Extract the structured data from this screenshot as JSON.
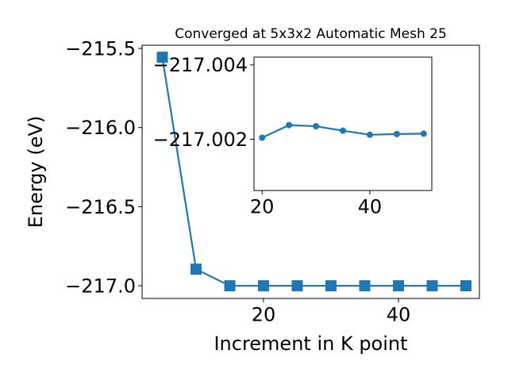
{
  "chart_data": [
    {
      "type": "line",
      "role": "main",
      "title": "Converged at 5x3x2 Automatic Mesh 25",
      "xlabel": "Increment in K point",
      "ylabel": "Energy (eV)",
      "xlim": [
        2,
        52
      ],
      "ylim": [
        -217.08,
        -215.48
      ],
      "xticks": [
        20,
        40
      ],
      "xtick_labels": [
        "20",
        "40"
      ],
      "yticks": [
        -215.5,
        -216.0,
        -216.5,
        -217.0
      ],
      "ytick_labels": [
        "−215.5",
        "−216.0",
        "−216.5",
        "−217.0"
      ],
      "marker": "square",
      "color": "#1f77b4",
      "grid": false,
      "series": [
        {
          "x": [
            5,
            10,
            15,
            20,
            25,
            30,
            35,
            40,
            45,
            50
          ],
          "y": [
            -215.556,
            -216.895,
            -217.0,
            -217.0,
            -217.0,
            -217.0,
            -217.0,
            -217.0,
            -217.0,
            -217.0
          ]
        }
      ]
    },
    {
      "type": "line",
      "role": "inset",
      "xlim": [
        18.5,
        51.5
      ],
      "ylim": [
        -217.00062,
        -217.00421
      ],
      "xticks": [
        20,
        40
      ],
      "xtick_labels": [
        "20",
        "40"
      ],
      "yticks": [
        -217.004,
        -217.002
      ],
      "ytick_labels": [
        "−217.004",
        "−217.002"
      ],
      "marker": "circle",
      "color": "#1f77b4",
      "grid": false,
      "series": [
        {
          "x": [
            20,
            25,
            30,
            35,
            40,
            45,
            50
          ],
          "y": [
            -217.00204,
            -217.00238,
            -217.00235,
            -217.00223,
            -217.00212,
            -217.00214,
            -217.00215
          ]
        }
      ]
    }
  ]
}
